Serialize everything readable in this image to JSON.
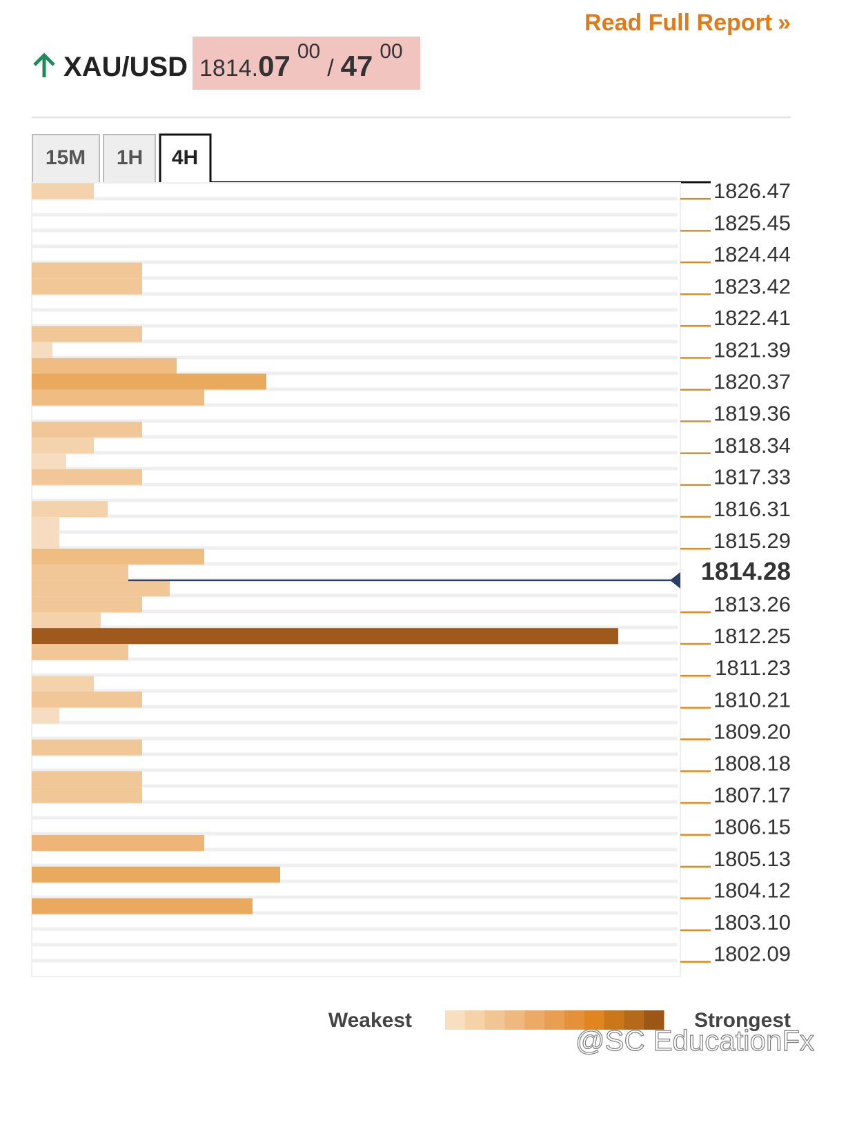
{
  "header": {
    "link": "Read Full Report",
    "link_icon": "»",
    "pair": "XAU/USD",
    "bid_main": "1814.",
    "bid_big": "07",
    "bid_sup": "00",
    "separator": "/",
    "ask_big": "47",
    "ask_sup": "00",
    "tabs": [
      "15M",
      "1H",
      "4H"
    ],
    "active_tab": 2
  },
  "chart_data": {
    "type": "bar",
    "orientation": "horizontal",
    "levels": [
      1826.72,
      1824.18,
      1823.67,
      1822.15,
      1821.64,
      1821.13,
      1820.63,
      1820.12,
      1819.1,
      1818.59,
      1818.09,
      1817.58,
      1816.56,
      1816.05,
      1815.55,
      1815.04,
      1814.53,
      1814.02,
      1813.51,
      1813.01,
      1812.5,
      1811.99,
      1810.97,
      1810.47,
      1809.96,
      1808.94,
      1807.93,
      1807.42,
      1805.89,
      1804.88,
      1803.87
    ],
    "values": [
      9,
      16,
      16,
      16,
      3,
      21,
      34,
      25,
      16,
      9,
      5,
      16,
      11,
      4,
      4,
      25,
      14,
      20,
      16,
      10,
      85,
      14,
      9,
      16,
      4,
      16,
      16,
      16,
      25,
      36,
      32
    ],
    "colors": [
      "#f4d3ac",
      "#f2c797",
      "#f2c797",
      "#f2c797",
      "#f6dcc0",
      "#efbc82",
      "#eaaa5e",
      "#efbc82",
      "#f2c797",
      "#f4d3ac",
      "#f6dcc0",
      "#f2c797",
      "#f4d3ac",
      "#f6dcc0",
      "#f6dcc0",
      "#efbc82",
      "#f2c797",
      "#f2c797",
      "#f2c797",
      "#f4d3ac",
      "#a0591d",
      "#f2c797",
      "#f4d3ac",
      "#f2c797",
      "#f6dcc0",
      "#f2c797",
      "#f2c797",
      "#f2c797",
      "#efb477",
      "#eaaa5e",
      "#eaaa5e"
    ],
    "xlim": [
      0,
      94
    ],
    "ylim": [
      1801.62,
      1826.98
    ],
    "yticks": [
      1826.47,
      1825.45,
      1824.44,
      1823.42,
      1822.41,
      1821.39,
      1820.37,
      1819.36,
      1818.34,
      1817.33,
      1816.31,
      1815.29,
      1813.26,
      1812.25,
      1811.23,
      1810.21,
      {
        "value": 1809.2,
        "label": "1809.20"
      },
      1808.18,
      1807.17,
      1806.15,
      1805.13,
      1804.12,
      {
        "value": 1803.1,
        "label": "1803.10"
      },
      1802.09
    ],
    "current_price": 1814.28,
    "tick_color": "#e08a1e",
    "price_line_color": "#2c3e66",
    "legend": {
      "weakest": "Weakest",
      "strongest": "Strongest",
      "colors": [
        "#f8dfc0",
        "#f5d2a8",
        "#f2c595",
        "#efb87e",
        "#ebab66",
        "#e89f52",
        "#e5913c",
        "#e0851f",
        "#c97719",
        "#b5691a",
        "#9c5717"
      ]
    }
  },
  "watermark": "@SC EducationFx"
}
